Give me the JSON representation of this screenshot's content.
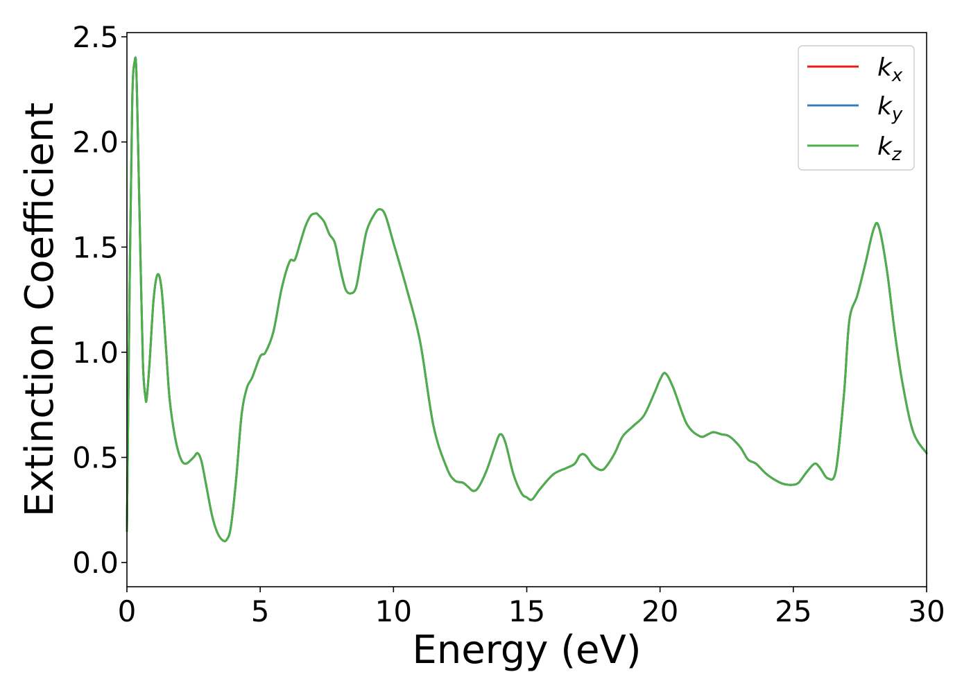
{
  "chart_data": {
    "type": "line",
    "title": "",
    "xlabel": "Energy (eV)",
    "ylabel": "Extinction Coefficient",
    "xlim": [
      0,
      30
    ],
    "ylim": [
      -0.115,
      2.52
    ],
    "xticks": [
      0,
      5,
      10,
      15,
      20,
      25,
      30
    ],
    "yticks": [
      0.0,
      0.5,
      1.0,
      1.5,
      2.0,
      2.5
    ],
    "xtick_labels": [
      "0",
      "5",
      "10",
      "15",
      "20",
      "25",
      "30"
    ],
    "ytick_labels": [
      "0.0",
      "0.5",
      "1.0",
      "1.5",
      "2.0",
      "2.5"
    ],
    "grid": false,
    "legend_position": "top-right",
    "x": [
      0.0,
      0.1,
      0.2,
      0.3,
      0.35,
      0.4,
      0.5,
      0.6,
      0.7,
      0.75,
      0.85,
      1.0,
      1.15,
      1.3,
      1.45,
      1.6,
      1.8,
      2.0,
      2.2,
      2.5,
      2.65,
      2.8,
      3.0,
      3.2,
      3.4,
      3.6,
      3.75,
      3.9,
      4.1,
      4.3,
      4.5,
      4.7,
      5.0,
      5.2,
      5.5,
      5.8,
      6.1,
      6.3,
      6.5,
      6.7,
      6.9,
      7.1,
      7.2,
      7.4,
      7.6,
      7.8,
      8.0,
      8.2,
      8.4,
      8.6,
      8.8,
      9.0,
      9.3,
      9.5,
      9.7,
      10.0,
      10.5,
      11.0,
      11.5,
      12.0,
      12.3,
      12.6,
      12.8,
      13.0,
      13.2,
      13.5,
      13.8,
      14.0,
      14.2,
      14.5,
      14.8,
      15.0,
      15.2,
      15.5,
      16.0,
      16.5,
      16.8,
      17.0,
      17.2,
      17.5,
      17.8,
      18.0,
      18.3,
      18.6,
      19.0,
      19.4,
      19.8,
      20.0,
      20.2,
      20.5,
      21.0,
      21.5,
      21.8,
      22.0,
      22.3,
      22.6,
      23.0,
      23.3,
      23.6,
      24.0,
      24.5,
      24.8,
      25.0,
      25.2,
      25.5,
      25.8,
      26.0,
      26.3,
      26.6,
      26.9,
      27.1,
      27.4,
      27.7,
      28.0,
      28.2,
      28.5,
      28.8,
      29.1,
      29.5,
      30.0
    ],
    "series": [
      {
        "name": "k_x",
        "color": "#e41a1c"
      },
      {
        "name": "k_y",
        "color": "#377eb8"
      },
      {
        "name": "k_z",
        "color": "#4daf4a"
      }
    ],
    "values": [
      0.15,
      1.3,
      2.2,
      2.39,
      2.35,
      2.1,
      1.5,
      0.95,
      0.78,
      0.79,
      0.95,
      1.25,
      1.37,
      1.3,
      1.05,
      0.78,
      0.6,
      0.5,
      0.47,
      0.5,
      0.52,
      0.48,
      0.35,
      0.22,
      0.14,
      0.105,
      0.11,
      0.17,
      0.4,
      0.7,
      0.83,
      0.88,
      0.98,
      1.0,
      1.1,
      1.3,
      1.43,
      1.44,
      1.52,
      1.6,
      1.65,
      1.66,
      1.65,
      1.62,
      1.56,
      1.52,
      1.4,
      1.3,
      1.28,
      1.31,
      1.45,
      1.58,
      1.66,
      1.68,
      1.65,
      1.52,
      1.3,
      1.05,
      0.65,
      0.45,
      0.39,
      0.38,
      0.36,
      0.34,
      0.36,
      0.44,
      0.55,
      0.61,
      0.57,
      0.42,
      0.33,
      0.31,
      0.3,
      0.35,
      0.42,
      0.45,
      0.47,
      0.51,
      0.51,
      0.46,
      0.44,
      0.46,
      0.52,
      0.6,
      0.65,
      0.7,
      0.81,
      0.87,
      0.9,
      0.83,
      0.66,
      0.6,
      0.61,
      0.62,
      0.61,
      0.6,
      0.55,
      0.49,
      0.47,
      0.42,
      0.38,
      0.37,
      0.37,
      0.38,
      0.43,
      0.47,
      0.45,
      0.4,
      0.44,
      0.8,
      1.15,
      1.27,
      1.42,
      1.58,
      1.6,
      1.4,
      1.1,
      0.85,
      0.62,
      0.52
    ]
  }
}
